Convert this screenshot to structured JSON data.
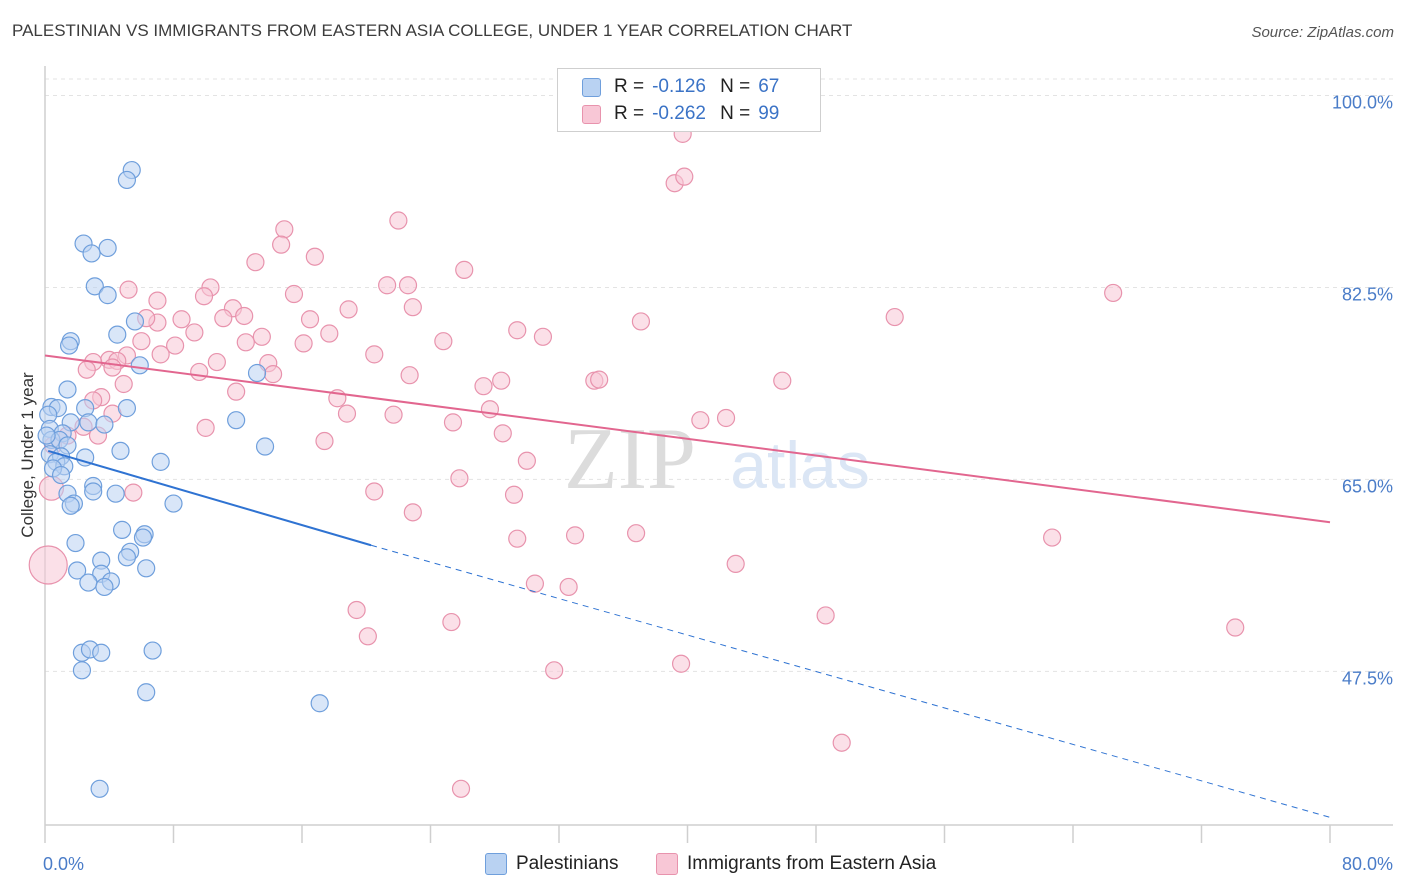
{
  "title": "PALESTINIAN VS IMMIGRANTS FROM EASTERN ASIA COLLEGE, UNDER 1 YEAR CORRELATION CHART",
  "source": "Source: ZipAtlas.com",
  "watermark": {
    "zip": "ZIP",
    "atlas": "atlas"
  },
  "colors": {
    "blue_fill": "#b9d2f2",
    "blue_stroke": "#6f9fdc",
    "blue_line": "#2f73d2",
    "pink_fill": "#f8c7d6",
    "pink_stroke": "#e893ad",
    "pink_line": "#e2668f",
    "axis_text": "#4a7cc8",
    "grid": "#e3e3e3"
  },
  "legend": {
    "r_label": "R =",
    "n_label": "N =",
    "series1": {
      "r": "-0.126",
      "n": "67"
    },
    "series2": {
      "r": "-0.262",
      "n": "99"
    }
  },
  "bottom_legend": {
    "s1": "Palestinians",
    "s2": "Immigrants from Eastern Asia"
  },
  "chart_data": {
    "type": "scatter",
    "title": "PALESTINIAN VS IMMIGRANTS FROM EASTERN ASIA COLLEGE, UNDER 1 YEAR CORRELATION CHART",
    "xlabel": "",
    "ylabel": "College, Under 1 year",
    "xlim": [
      0,
      80
    ],
    "ylim": [
      33.5,
      101.5
    ],
    "x_ticks": [
      "0.0%",
      "80.0%"
    ],
    "y_ticks": [
      {
        "value": 100.0,
        "label": "100.0%"
      },
      {
        "value": 82.5,
        "label": "82.5%"
      },
      {
        "value": 65.0,
        "label": "65.0%"
      },
      {
        "value": 47.5,
        "label": "47.5%"
      }
    ],
    "grid": true,
    "legend_position": "top-center",
    "series": [
      {
        "name": "Palestinians",
        "color": "#6f9fdc",
        "trend": {
          "x0": 0.2,
          "y0": 67.6,
          "x1": 20.3,
          "y1": 59.0,
          "dashed_to_x": 80,
          "dashed_to_y": 34.2
        },
        "points": [
          [
            5.4,
            93.2
          ],
          [
            5.1,
            92.3
          ],
          [
            2.4,
            86.5
          ],
          [
            3.9,
            86.1
          ],
          [
            2.9,
            85.6
          ],
          [
            3.1,
            82.6
          ],
          [
            3.9,
            81.8
          ],
          [
            5.6,
            79.4
          ],
          [
            4.5,
            78.2
          ],
          [
            1.6,
            77.6
          ],
          [
            1.5,
            77.2
          ],
          [
            5.9,
            75.4
          ],
          [
            13.2,
            74.7
          ],
          [
            1.4,
            73.2
          ],
          [
            0.4,
            71.6
          ],
          [
            0.8,
            71.5
          ],
          [
            2.5,
            71.5
          ],
          [
            5.1,
            71.5
          ],
          [
            0.2,
            70.9
          ],
          [
            11.9,
            70.4
          ],
          [
            1.6,
            70.2
          ],
          [
            2.7,
            70.2
          ],
          [
            3.7,
            70.0
          ],
          [
            0.3,
            69.6
          ],
          [
            1.1,
            69.2
          ],
          [
            0.4,
            68.6
          ],
          [
            0.9,
            68.6
          ],
          [
            1.4,
            68.1
          ],
          [
            13.7,
            68.0
          ],
          [
            4.7,
            67.6
          ],
          [
            0.3,
            67.3
          ],
          [
            1.0,
            67.1
          ],
          [
            2.5,
            67.0
          ],
          [
            0.7,
            66.6
          ],
          [
            7.2,
            66.6
          ],
          [
            1.2,
            66.2
          ],
          [
            0.5,
            66.0
          ],
          [
            1.0,
            65.4
          ],
          [
            3.0,
            64.4
          ],
          [
            3.0,
            63.9
          ],
          [
            1.4,
            63.7
          ],
          [
            4.4,
            63.7
          ],
          [
            1.8,
            62.8
          ],
          [
            8.0,
            62.8
          ],
          [
            1.6,
            62.6
          ],
          [
            4.8,
            60.4
          ],
          [
            6.2,
            60.0
          ],
          [
            6.1,
            59.7
          ],
          [
            1.9,
            59.2
          ],
          [
            5.3,
            58.4
          ],
          [
            5.1,
            57.9
          ],
          [
            3.5,
            57.6
          ],
          [
            6.3,
            56.9
          ],
          [
            2.0,
            56.7
          ],
          [
            3.5,
            56.4
          ],
          [
            4.1,
            55.7
          ],
          [
            2.7,
            55.6
          ],
          [
            3.7,
            55.2
          ],
          [
            2.3,
            49.2
          ],
          [
            2.8,
            49.5
          ],
          [
            3.5,
            49.2
          ],
          [
            6.7,
            49.4
          ],
          [
            2.3,
            47.6
          ],
          [
            6.3,
            45.6
          ],
          [
            17.1,
            44.6
          ],
          [
            3.4,
            36.8
          ],
          [
            0.1,
            69.0
          ]
        ]
      },
      {
        "name": "Immigrants from Eastern Asia",
        "color": "#e893ad",
        "trend": {
          "x0": 0,
          "y0": 76.3,
          "x1": 80,
          "y1": 61.1
        },
        "points": [
          [
            39.7,
            96.5
          ],
          [
            39.2,
            92.0
          ],
          [
            39.8,
            92.6
          ],
          [
            22.0,
            88.6
          ],
          [
            14.9,
            87.8
          ],
          [
            14.7,
            86.4
          ],
          [
            16.8,
            85.3
          ],
          [
            13.1,
            84.8
          ],
          [
            26.1,
            84.1
          ],
          [
            21.3,
            82.7
          ],
          [
            22.6,
            82.7
          ],
          [
            10.3,
            82.5
          ],
          [
            5.2,
            82.3
          ],
          [
            15.5,
            81.9
          ],
          [
            7.0,
            81.3
          ],
          [
            9.9,
            81.7
          ],
          [
            11.7,
            80.6
          ],
          [
            18.9,
            80.5
          ],
          [
            22.9,
            80.7
          ],
          [
            11.1,
            79.7
          ],
          [
            12.4,
            79.9
          ],
          [
            16.5,
            79.6
          ],
          [
            7.0,
            79.3
          ],
          [
            8.5,
            79.6
          ],
          [
            6.3,
            79.7
          ],
          [
            37.1,
            79.4
          ],
          [
            9.3,
            78.4
          ],
          [
            17.7,
            78.3
          ],
          [
            29.4,
            78.6
          ],
          [
            31.0,
            78.0
          ],
          [
            13.5,
            78.0
          ],
          [
            24.8,
            77.6
          ],
          [
            6.0,
            77.6
          ],
          [
            12.5,
            77.5
          ],
          [
            16.1,
            77.4
          ],
          [
            8.1,
            77.2
          ],
          [
            20.5,
            76.4
          ],
          [
            7.2,
            76.4
          ],
          [
            5.1,
            76.3
          ],
          [
            4.0,
            75.9
          ],
          [
            4.5,
            75.8
          ],
          [
            3.0,
            75.7
          ],
          [
            10.7,
            75.7
          ],
          [
            13.9,
            75.6
          ],
          [
            4.2,
            75.2
          ],
          [
            2.6,
            75.0
          ],
          [
            9.6,
            74.8
          ],
          [
            14.2,
            74.6
          ],
          [
            22.7,
            74.5
          ],
          [
            34.2,
            74.0
          ],
          [
            28.4,
            74.0
          ],
          [
            34.5,
            74.1
          ],
          [
            45.9,
            74.0
          ],
          [
            4.9,
            73.7
          ],
          [
            27.3,
            73.5
          ],
          [
            11.9,
            73.0
          ],
          [
            18.2,
            72.4
          ],
          [
            3.5,
            72.5
          ],
          [
            3.0,
            72.2
          ],
          [
            27.7,
            71.4
          ],
          [
            18.8,
            71.0
          ],
          [
            21.7,
            70.9
          ],
          [
            4.2,
            71.0
          ],
          [
            42.4,
            70.6
          ],
          [
            40.8,
            70.4
          ],
          [
            25.4,
            70.2
          ],
          [
            2.4,
            69.8
          ],
          [
            10.0,
            69.7
          ],
          [
            28.5,
            69.2
          ],
          [
            1.4,
            69.0
          ],
          [
            17.4,
            68.5
          ],
          [
            0.5,
            68.1
          ],
          [
            30.0,
            66.7
          ],
          [
            25.8,
            65.1
          ],
          [
            20.5,
            63.9
          ],
          [
            29.2,
            63.6
          ],
          [
            5.5,
            63.8
          ],
          [
            0.4,
            64.2
          ],
          [
            22.9,
            62.0
          ],
          [
            66.5,
            82.0
          ],
          [
            52.9,
            79.8
          ],
          [
            29.4,
            59.6
          ],
          [
            33.0,
            59.9
          ],
          [
            36.8,
            60.1
          ],
          [
            62.7,
            59.7
          ],
          [
            43.0,
            57.3
          ],
          [
            30.5,
            55.5
          ],
          [
            32.6,
            55.2
          ],
          [
            19.4,
            53.1
          ],
          [
            48.6,
            52.6
          ],
          [
            25.3,
            52.0
          ],
          [
            20.1,
            50.7
          ],
          [
            74.1,
            51.5
          ],
          [
            39.6,
            48.2
          ],
          [
            31.7,
            47.6
          ],
          [
            49.6,
            41.0
          ],
          [
            25.9,
            36.8
          ],
          [
            0.2,
            57.2
          ],
          [
            3.3,
            69.0
          ]
        ]
      }
    ]
  }
}
